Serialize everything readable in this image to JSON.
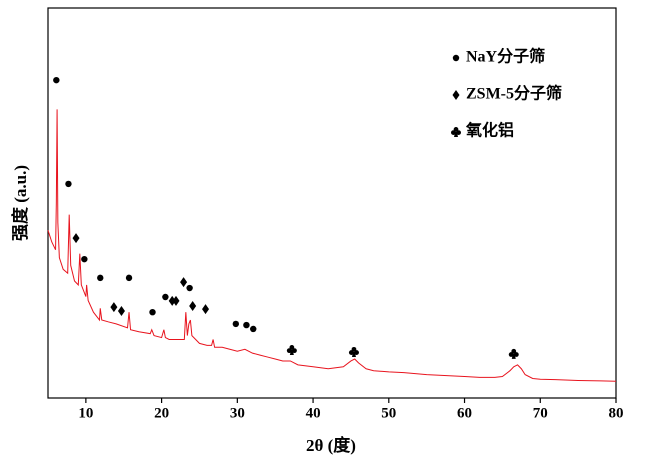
{
  "chart_data": {
    "type": "line",
    "x_label": "2θ (度)",
    "y_label": "强度 (a.u.)",
    "xlim": [
      5,
      80
    ],
    "xticks": [
      10,
      20,
      30,
      40,
      50,
      60,
      70,
      80
    ],
    "ylim": [
      0,
      100
    ],
    "color": "#e8141e",
    "x": [
      5,
      5.5,
      6,
      6.1,
      6.2,
      6.3,
      6.5,
      7,
      7.6,
      7.8,
      8,
      8.5,
      9,
      9.2,
      9.4,
      10,
      10.1,
      10.3,
      11,
      11.8,
      11.9,
      12.1,
      13,
      14,
      15.5,
      15.7,
      15.9,
      17,
      18.5,
      18.7,
      19,
      20,
      20.3,
      20.5,
      21,
      22,
      23,
      23.2,
      23.4,
      23.6,
      23.8,
      24,
      24.5,
      25,
      26,
      26.6,
      26.8,
      27,
      28,
      29,
      30,
      31,
      32,
      33,
      34,
      35,
      36,
      37,
      38,
      40,
      42,
      44,
      45,
      45.5,
      46,
      47,
      48,
      50,
      52,
      55,
      58,
      60,
      62,
      64,
      65,
      66,
      66.5,
      67,
      67.5,
      68,
      69,
      70,
      72,
      75,
      78,
      80
    ],
    "values": [
      43,
      40,
      38,
      50,
      74,
      45,
      36,
      33,
      32,
      47,
      34,
      30,
      29,
      37,
      29,
      26,
      29,
      25,
      22,
      20,
      23,
      20,
      19.5,
      19,
      18,
      22,
      17.5,
      17,
      16.5,
      17.5,
      16,
      15.5,
      17.5,
      15.5,
      15,
      15,
      15,
      22,
      16,
      19,
      20,
      16,
      15,
      14,
      13.5,
      13.5,
      15,
      13,
      13,
      12.5,
      12,
      12.5,
      11.5,
      11,
      10.5,
      10,
      9.5,
      9.5,
      8.5,
      8,
      7.5,
      8,
      9.5,
      10,
      9,
      7.5,
      7,
      6.7,
      6.5,
      6,
      5.7,
      5.5,
      5.3,
      5.3,
      5.5,
      7,
      8,
      8.5,
      7.5,
      6,
      5,
      4.8,
      4.7,
      4.5,
      4.4,
      4.3
    ],
    "legend_position": "upper right",
    "phases": [
      {
        "name": "NaY分子筛",
        "marker": "circle",
        "x": [
          6.1,
          7.7,
          9.8,
          11.9,
          15.7,
          20.5,
          23.7,
          18.8,
          29.8,
          31.2,
          32.1
        ],
        "y": [
          81.5,
          54.9,
          35.6,
          30.8,
          30.8,
          25.9,
          28.2,
          22,
          19,
          18.7,
          17.7
        ]
      },
      {
        "name": "ZSM-5分子筛",
        "marker": "diamond",
        "x": [
          8.7,
          13.7,
          14.7,
          21.4,
          21.9,
          22.9,
          24.1,
          25.8
        ],
        "y": [
          41,
          23.3,
          22.3,
          24.9,
          24.9,
          29.7,
          23.6,
          22.8
        ]
      },
      {
        "name": "氧化铝",
        "marker": "club",
        "x": [
          37.2,
          45.4,
          66.5
        ],
        "y": [
          12.3,
          11.8,
          11.3
        ]
      }
    ]
  }
}
